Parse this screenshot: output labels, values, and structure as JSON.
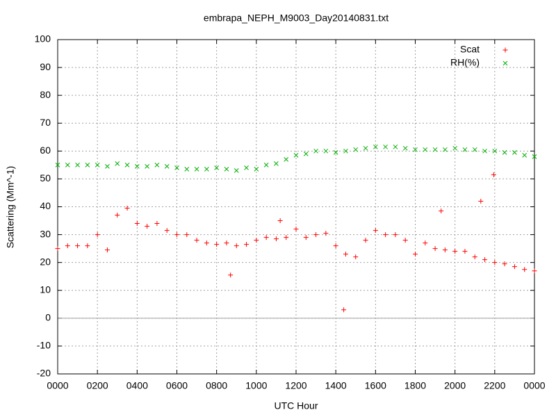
{
  "chart_data": {
    "type": "scatter",
    "title": "embrapa_NEPH_M9003_Day20140831.txt",
    "xlabel": "UTC Hour",
    "ylabel": "Scattering (Mm^-1)",
    "xlim": [
      0,
      24
    ],
    "ylim": [
      -20,
      100
    ],
    "xticks": [
      {
        "value": 0,
        "label": "0000"
      },
      {
        "value": 2,
        "label": "0200"
      },
      {
        "value": 4,
        "label": "0400"
      },
      {
        "value": 6,
        "label": "0600"
      },
      {
        "value": 8,
        "label": "0800"
      },
      {
        "value": 10,
        "label": "1000"
      },
      {
        "value": 12,
        "label": "1200"
      },
      {
        "value": 14,
        "label": "1400"
      },
      {
        "value": 16,
        "label": "1600"
      },
      {
        "value": 18,
        "label": "1800"
      },
      {
        "value": 20,
        "label": "2000"
      },
      {
        "value": 22,
        "label": "2200"
      },
      {
        "value": 24,
        "label": "0000"
      }
    ],
    "yticks": [
      -20,
      -10,
      0,
      10,
      20,
      30,
      40,
      50,
      60,
      70,
      80,
      90,
      100
    ],
    "grid": true,
    "zeroaxis": true,
    "legend": "top right",
    "series": [
      {
        "name": "Scat",
        "color": "#ff0000",
        "marker": "plus",
        "x": [
          0,
          0.5,
          1,
          1.5,
          2,
          2.5,
          3,
          3.5,
          4,
          4.5,
          5,
          5.5,
          6,
          6.5,
          7,
          7.5,
          8,
          8.5,
          8.7,
          9,
          9.5,
          10,
          10.5,
          11,
          11.2,
          11.5,
          12,
          12.5,
          13,
          13.5,
          14,
          14.4,
          14.5,
          15,
          15.5,
          16,
          16.5,
          17,
          17.5,
          18,
          18.5,
          19,
          19.3,
          19.5,
          20,
          20.5,
          21,
          21.3,
          21.5,
          21.95,
          22,
          22.5,
          23,
          23.5,
          24
        ],
        "values": [
          25,
          26,
          26,
          26,
          30,
          24.5,
          37,
          39.5,
          34,
          33,
          34,
          31.5,
          30,
          30,
          28,
          27,
          26.5,
          27,
          15.5,
          26,
          26.5,
          28,
          29,
          28.5,
          35,
          29,
          32,
          29,
          30,
          30.5,
          26,
          3,
          23,
          22,
          28,
          31.5,
          30,
          30,
          28,
          23,
          27,
          25,
          38.5,
          24.5,
          24,
          24,
          22,
          42,
          21,
          51.5,
          20,
          19.5,
          18.5,
          17.5,
          17
        ]
      },
      {
        "name": "RH(%)",
        "color": "#00b000",
        "marker": "cross",
        "x": [
          0,
          0.5,
          1,
          1.5,
          2,
          2.5,
          3,
          3.5,
          4,
          4.5,
          5,
          5.5,
          6,
          6.5,
          7,
          7.5,
          8,
          8.5,
          9,
          9.5,
          10,
          10.5,
          11,
          11.5,
          12,
          12.5,
          13,
          13.5,
          14,
          14.5,
          15,
          15.5,
          16,
          16.5,
          17,
          17.5,
          18,
          18.5,
          19,
          19.5,
          20,
          20.5,
          21,
          21.5,
          22,
          22.5,
          23,
          23.5,
          24
        ],
        "values": [
          55,
          55,
          55,
          55,
          55,
          54.5,
          55.5,
          55,
          54.5,
          54.5,
          55,
          54.5,
          54,
          53.5,
          53.5,
          53.5,
          54,
          53.5,
          53,
          54,
          53.5,
          55,
          55.5,
          57,
          58.5,
          59,
          60,
          60,
          59.5,
          60,
          60.5,
          61,
          61.5,
          61.5,
          61.5,
          61,
          60.5,
          60.5,
          60.5,
          60.5,
          61,
          60.5,
          60.5,
          60,
          60,
          59.5,
          59.5,
          58.5,
          58
        ]
      }
    ]
  }
}
